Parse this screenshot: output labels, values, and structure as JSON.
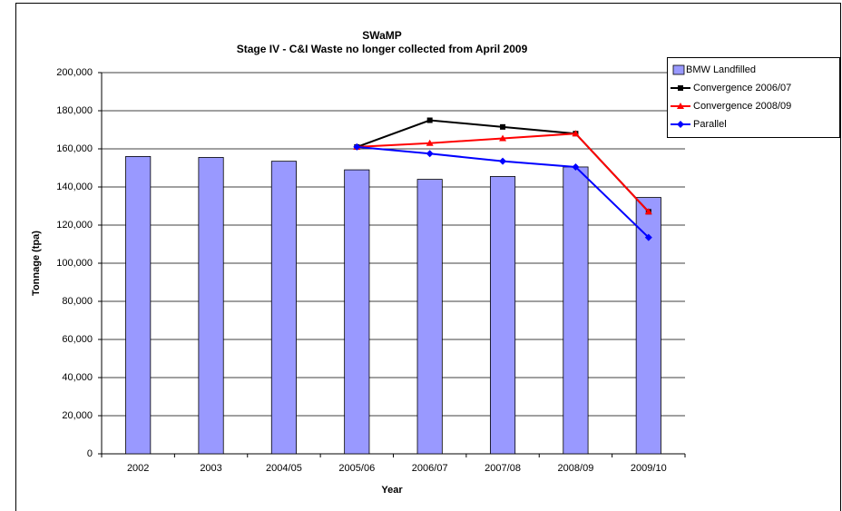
{
  "chart_data": {
    "type": "bar",
    "title": "SWaMP",
    "subtitle": "Stage IV - C&I Waste no longer collected from April 2009",
    "xlabel": "Year",
    "ylabel": "Tonnage (tpa)",
    "categories": [
      "2002",
      "2003",
      "2004/05",
      "2005/06",
      "2006/07",
      "2007/08",
      "2008/09",
      "2009/10"
    ],
    "bar_series": {
      "name": "BMW Landfilled",
      "color": "#9999ff",
      "values": [
        156000,
        155500,
        153500,
        149000,
        144000,
        145500,
        150500,
        134500
      ]
    },
    "series": [
      {
        "name": "Convergence 2006/07",
        "color": "#000000",
        "marker": "square",
        "values": [
          null,
          null,
          null,
          161000,
          175000,
          171500,
          168000,
          127000
        ]
      },
      {
        "name": "Convergence 2008/09",
        "color": "#ff0000",
        "marker": "triangle",
        "values": [
          null,
          null,
          null,
          161000,
          163000,
          165500,
          168000,
          127000
        ]
      },
      {
        "name": "Parallel",
        "color": "#0000ff",
        "marker": "diamond",
        "values": [
          null,
          null,
          null,
          161000,
          157500,
          153500,
          150500,
          113500
        ]
      }
    ],
    "ylim": [
      0,
      200000
    ],
    "yticks": [
      0,
      {
        "value": 20000,
        "label": "20,000"
      },
      {
        "value": 40000,
        "label": "40,000"
      },
      {
        "value": 60000,
        "label": "60,000"
      },
      {
        "value": 80000,
        "label": "80,000"
      },
      {
        "value": 100000,
        "label": "100,000"
      },
      {
        "value": 120000,
        "label": "120,000"
      },
      {
        "value": 140000,
        "label": "140,000"
      },
      {
        "value": 160000,
        "label": "160,000"
      },
      {
        "value": 180000,
        "label": "180,000"
      },
      {
        "value": 200000,
        "label": "200,000"
      }
    ],
    "grid": true,
    "legend": "top-right"
  }
}
